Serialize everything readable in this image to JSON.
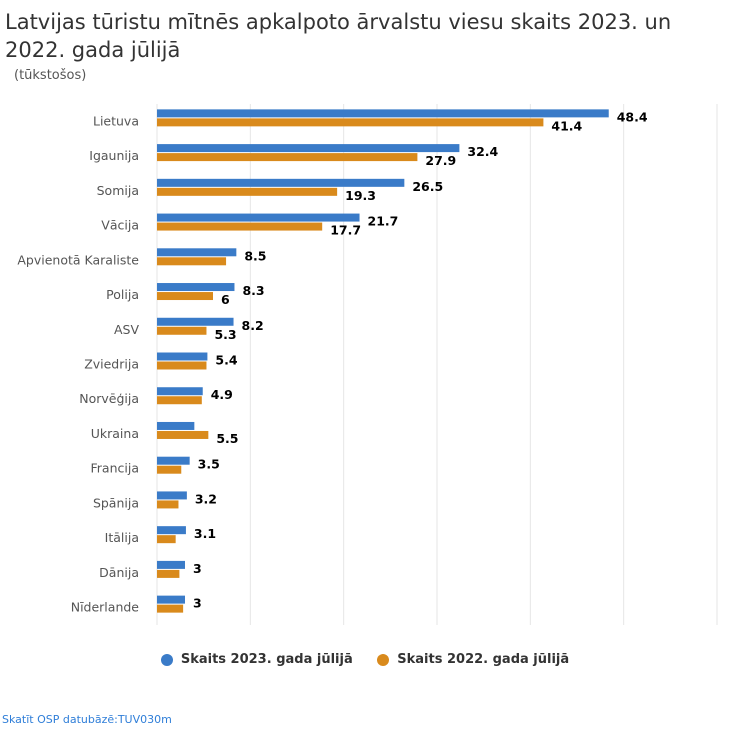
{
  "title": "Latvijas tūristu mītnēs apkalpoto ārvalstu viesu skaits 2023. un 2022. gada jūlijā",
  "subtitle": "(tūkstošos)",
  "source_link": "Skatīt OSP datubāzē:TUV030m",
  "colors": {
    "series2023": "#3a7bc8",
    "series2022": "#d98a1c",
    "grid": "#e6e6e6",
    "axis_label": "#555555"
  },
  "chart_data": {
    "type": "bar",
    "orientation": "horizontal",
    "categories": [
      "Lietuva",
      "Igaunija",
      "Somija",
      "Vācija",
      "Apvienotā Karaliste",
      "Polija",
      "ASV",
      "Zviedrija",
      "Norvēģija",
      "Ukraina",
      "Francija",
      "Spānija",
      "Itālija",
      "Dānija",
      "Nīderlande"
    ],
    "series": [
      {
        "name": "Skaits 2023. gada jūlijā",
        "values": [
          48.4,
          32.4,
          26.5,
          21.7,
          8.5,
          8.3,
          8.2,
          5.4,
          4.9,
          4.0,
          3.5,
          3.2,
          3.1,
          3,
          3
        ],
        "labels": [
          "48.4",
          "32.4",
          "26.5",
          "21.7",
          "8.5",
          "8.3",
          "8.2",
          "5.4",
          "4.9",
          "",
          "3.5",
          "3.2",
          "3.1",
          "3",
          "3"
        ]
      },
      {
        "name": "Skaits 2022. gada jūlijā",
        "values": [
          41.4,
          27.9,
          19.3,
          17.7,
          7.4,
          6,
          5.3,
          5.3,
          4.8,
          5.5,
          2.6,
          2.3,
          2.0,
          2.4,
          2.8
        ],
        "labels": [
          "41.4",
          "27.9",
          "19.3",
          "17.7",
          "",
          "6",
          "5.3",
          "",
          "",
          "5.5",
          "",
          "",
          "",
          "",
          ""
        ]
      }
    ],
    "xlim": [
      0,
      60
    ],
    "grid": true,
    "legend": "bottom"
  }
}
